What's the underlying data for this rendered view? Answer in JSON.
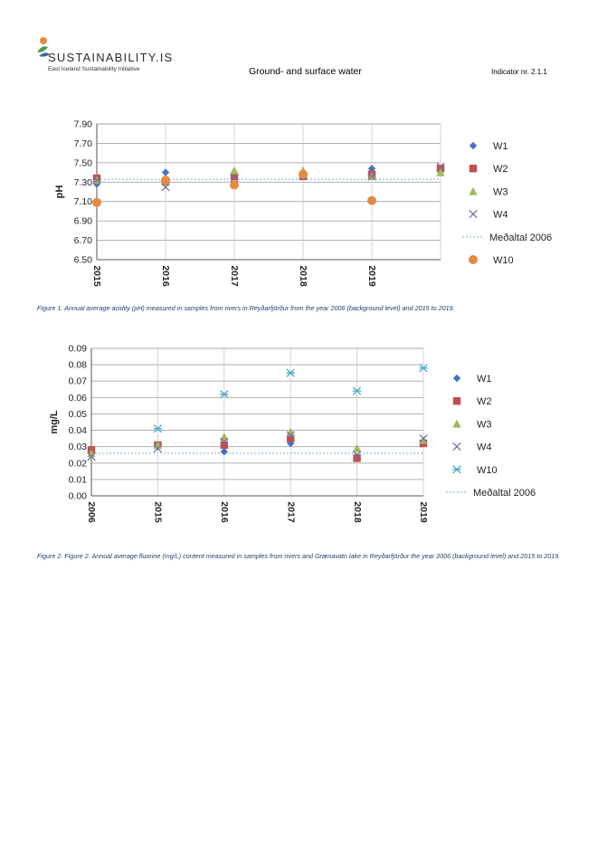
{
  "header": {
    "logo_text": "SUSTAINABILITY.IS",
    "logo_subtitle": "East Iceland Sustainability Initiative",
    "title": "Ground- and surface water",
    "indicator": "Indicator nr. 2.1.1"
  },
  "colors": {
    "W1": "#4472c4",
    "W2": "#c0504d",
    "W3": "#9bbb59",
    "W4": "#7f6aa5",
    "W10a": "#e38b42",
    "W10b": "#4bacc6",
    "baseline": "#bdd7ee",
    "grid": "#a6a6a6"
  },
  "captions": {
    "figure1": "Figure 1. Annual average acidity (pH) measured in samples from rivers in Reyðarfjörður from the year 2006 (background level) and 2015 to 2019.",
    "figure2": "Figure 2. Figure 2. Annual average fluorine (mg/L) content measured in samples from rivers and Grænavatn lake in Reyðarfjörður the year 2006 (background level) and 2015 to 2019."
  },
  "chart_data": [
    {
      "type": "scatter",
      "ylabel": "pH",
      "categories": [
        "2015",
        "2016",
        "2017",
        "2018",
        "2019",
        ""
      ],
      "ylim": [
        6.5,
        7.9
      ],
      "yticks": [
        "6.50",
        "6.70",
        "6.90",
        "7.10",
        "7.30",
        "7.50",
        "7.70",
        "7.90"
      ],
      "grid": true,
      "legend_position": "right",
      "series": [
        {
          "name": "W1",
          "marker": "diamond",
          "values": [
            7.28,
            7.4,
            7.38,
            7.38,
            7.44,
            7.44
          ]
        },
        {
          "name": "W2",
          "marker": "square",
          "values": [
            7.34,
            7.3,
            7.36,
            7.36,
            7.38,
            7.44
          ]
        },
        {
          "name": "W3",
          "marker": "triangle",
          "values": [
            7.32,
            7.3,
            7.42,
            7.42,
            7.36,
            7.4
          ]
        },
        {
          "name": "W4",
          "marker": "x",
          "values": [
            7.32,
            7.25,
            7.34,
            7.36,
            7.36,
            7.46
          ]
        },
        {
          "name": "Meðaltal 2006",
          "marker": "dotted-line",
          "values": [
            7.33
          ]
        },
        {
          "name": "W10",
          "marker": "circle",
          "values": [
            7.09,
            7.32,
            7.27,
            7.38,
            7.11,
            null
          ]
        }
      ]
    },
    {
      "type": "scatter",
      "ylabel": "mg/L",
      "categories": [
        "2006",
        "2015",
        "2016",
        "2017",
        "2018",
        "2019"
      ],
      "ylim": [
        0,
        0.09
      ],
      "yticks": [
        "0.00",
        "0.01",
        "0.02",
        "0.03",
        "0.04",
        "0.05",
        "0.06",
        "0.07",
        "0.08",
        "0.09"
      ],
      "grid": true,
      "legend_position": "right",
      "series": [
        {
          "name": "W1",
          "marker": "diamond",
          "values": [
            0.027,
            0.03,
            0.027,
            0.032,
            0.023,
            0.033
          ]
        },
        {
          "name": "W2",
          "marker": "square",
          "values": [
            0.028,
            0.031,
            0.031,
            0.035,
            0.023,
            0.032
          ]
        },
        {
          "name": "W3",
          "marker": "triangle",
          "values": [
            0.026,
            0.031,
            0.036,
            0.039,
            0.029,
            0.034
          ]
        },
        {
          "name": "W4",
          "marker": "x",
          "values": [
            0.024,
            0.029,
            0.033,
            0.037,
            0.025,
            0.035
          ]
        },
        {
          "name": "W10",
          "marker": "asterisk",
          "values": [
            null,
            0.041,
            0.062,
            0.075,
            0.064,
            0.078
          ]
        },
        {
          "name": "Meðaltal 2006",
          "marker": "dotted-line",
          "values": [
            0.026
          ]
        }
      ]
    }
  ]
}
